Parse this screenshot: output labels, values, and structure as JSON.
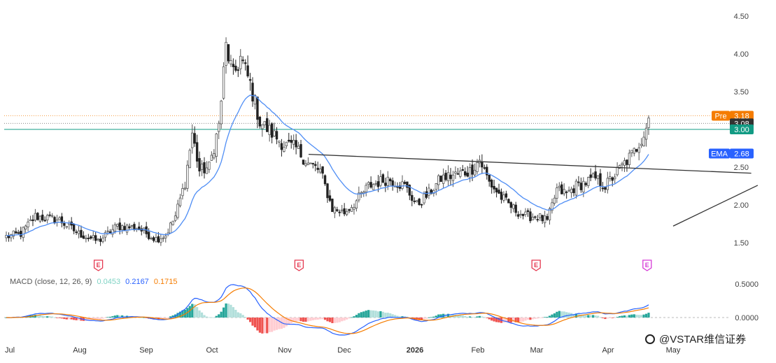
{
  "chart_data": {
    "type": "candlestick",
    "price_axis": {
      "ticks": [
        "4.50",
        "4.00",
        "3.50",
        "2.50",
        "2.00",
        "1.50"
      ],
      "ylim": [
        1.25,
        4.7
      ]
    },
    "macd_axis": {
      "ticks": [
        "0.5000",
        "0.0000"
      ],
      "ylim": [
        -0.32,
        0.62
      ]
    },
    "x_ticks": [
      {
        "label": "Jul",
        "bold": false
      },
      {
        "label": "Aug",
        "bold": false
      },
      {
        "label": "Sep",
        "bold": false
      },
      {
        "label": "Oct",
        "bold": false
      },
      {
        "label": "Nov",
        "bold": false
      },
      {
        "label": "Dec",
        "bold": false
      },
      {
        "label": "2026",
        "bold": true
      },
      {
        "label": "Feb",
        "bold": false
      },
      {
        "label": "Mar",
        "bold": false
      },
      {
        "label": "Apr",
        "bold": false
      },
      {
        "label": "May",
        "bold": false
      }
    ],
    "price_lines": [
      {
        "label": "Pre",
        "value": "3.18",
        "color": "#f57c00"
      },
      {
        "label": "",
        "value": "3.08",
        "color": "#333333"
      },
      {
        "label": "",
        "value": "3.00",
        "color": "#129b84"
      }
    ],
    "ema_badge": {
      "label": "EMA",
      "value": "2.68",
      "color": "#2962ff"
    },
    "earnings_markers": [
      "E",
      "E",
      "E",
      "E"
    ],
    "anchors": [
      [
        0,
        1.58
      ],
      [
        6,
        1.62
      ],
      [
        12,
        1.85
      ],
      [
        18,
        1.82
      ],
      [
        22,
        1.8
      ],
      [
        30,
        1.62
      ],
      [
        38,
        1.52
      ],
      [
        46,
        1.72
      ],
      [
        54,
        1.7
      ],
      [
        62,
        1.55
      ],
      [
        66,
        1.6
      ],
      [
        70,
        1.85
      ],
      [
        74,
        2.3
      ],
      [
        77,
        2.95
      ],
      [
        80,
        2.45
      ],
      [
        84,
        2.5
      ],
      [
        88,
        3.05
      ],
      [
        91,
        4.1
      ],
      [
        94,
        3.7
      ],
      [
        97,
        3.95
      ],
      [
        101,
        3.6
      ],
      [
        105,
        3.1
      ],
      [
        110,
        2.95
      ],
      [
        115,
        2.8
      ],
      [
        120,
        2.75
      ],
      [
        125,
        2.55
      ],
      [
        130,
        2.45
      ],
      [
        135,
        1.95
      ],
      [
        140,
        1.9
      ],
      [
        145,
        2.05
      ],
      [
        150,
        2.25
      ],
      [
        158,
        2.35
      ],
      [
        165,
        2.25
      ],
      [
        170,
        2.0
      ],
      [
        175,
        2.15
      ],
      [
        180,
        2.35
      ],
      [
        186,
        2.4
      ],
      [
        192,
        2.45
      ],
      [
        196,
        2.6
      ],
      [
        200,
        2.3
      ],
      [
        205,
        2.1
      ],
      [
        210,
        1.95
      ],
      [
        215,
        1.85
      ],
      [
        220,
        1.85
      ],
      [
        224,
        1.78
      ],
      [
        228,
        2.2
      ],
      [
        232,
        2.15
      ],
      [
        236,
        2.25
      ],
      [
        240,
        2.3
      ],
      [
        244,
        2.35
      ],
      [
        248,
        2.25
      ],
      [
        252,
        2.4
      ],
      [
        256,
        2.55
      ],
      [
        260,
        2.7
      ],
      [
        264,
        2.95
      ],
      [
        266,
        3.15
      ]
    ],
    "triangle_lines": [
      {
        "name": "upper",
        "points": [
          [
            4.4,
            2.67
          ],
          [
            11.2,
            2.42
          ]
        ]
      },
      {
        "name": "lower",
        "points": [
          [
            10.0,
            1.72
          ],
          [
            11.3,
            2.26
          ]
        ]
      }
    ],
    "macd": {
      "params": "MACD (close, 12, 26, 9)",
      "histogram": "0.0453",
      "macd": "0.2167",
      "signal": "0.1715",
      "colors": {
        "histogram": "#7fd3c4",
        "macd": "#2962ff",
        "signal": "#f57c00"
      }
    }
  },
  "watermark": "@VSTAR维信证券"
}
